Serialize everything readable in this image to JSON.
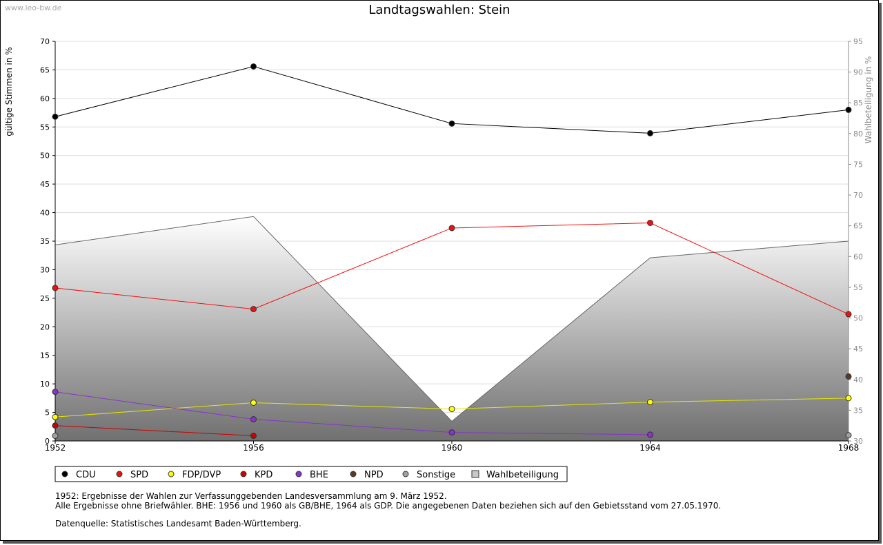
{
  "watermark": "www.leo-bw.de",
  "chart_data": {
    "type": "line",
    "title": "Landtagswahlen: Stein",
    "ylabel": "gültige Stimmen in %",
    "y2label": "Wahlbeteiligung in %",
    "categories": [
      "1952",
      "1956",
      "1960",
      "1964",
      "1968"
    ],
    "ylim": [
      0,
      70
    ],
    "yticks": [
      0,
      5,
      10,
      15,
      20,
      25,
      30,
      35,
      40,
      45,
      50,
      55,
      60,
      65,
      70
    ],
    "y2lim": [
      30,
      95
    ],
    "y2ticks": [
      30,
      35,
      40,
      45,
      50,
      55,
      60,
      65,
      70,
      75,
      80,
      85,
      90,
      95
    ],
    "grid": true,
    "area": {
      "name": "Wahlbeteiligung",
      "axis": "right",
      "values": [
        61.9,
        66.5,
        33.2,
        59.8,
        62.5
      ]
    },
    "series": [
      {
        "name": "CDU",
        "color": "#000000",
        "values": [
          56.8,
          65.6,
          55.6,
          53.9,
          58.0
        ]
      },
      {
        "name": "SPD",
        "color": "#ee1111",
        "values": [
          26.8,
          23.1,
          37.3,
          38.2,
          22.2
        ]
      },
      {
        "name": "FDP/DVP",
        "color": "#ffff00",
        "values": [
          4.2,
          6.7,
          5.6,
          6.8,
          7.5
        ]
      },
      {
        "name": "KPD",
        "color": "#cc0000",
        "values": [
          2.7,
          0.9,
          null,
          null,
          null
        ]
      },
      {
        "name": "BHE",
        "color": "#8833cc",
        "values": [
          8.6,
          3.8,
          1.5,
          1.1,
          null
        ]
      },
      {
        "name": "NPD",
        "color": "#5a3a22",
        "values": [
          null,
          null,
          null,
          null,
          11.3
        ]
      },
      {
        "name": "Sonstige",
        "color": "#a0a0a0",
        "values": [
          0.9,
          null,
          null,
          null,
          1.0
        ]
      }
    ],
    "legend": [
      "CDU",
      "SPD",
      "FDP/DVP",
      "KPD",
      "BHE",
      "NPD",
      "Sonstige",
      "Wahlbeteiligung"
    ]
  },
  "notes": {
    "line1": "1952: Ergebnisse der Wahlen zur Verfassunggebenden Landesversammlung am 9. März 1952.",
    "line2": "Alle Ergebnisse ohne Briefwähler. BHE: 1956 und 1960 als GB/BHE, 1964 als GDP. Die angegebenen Daten beziehen sich auf den Gebietsstand vom 27.05.1970.",
    "source": "Datenquelle: Statistisches Landesamt Baden-Württemberg."
  }
}
